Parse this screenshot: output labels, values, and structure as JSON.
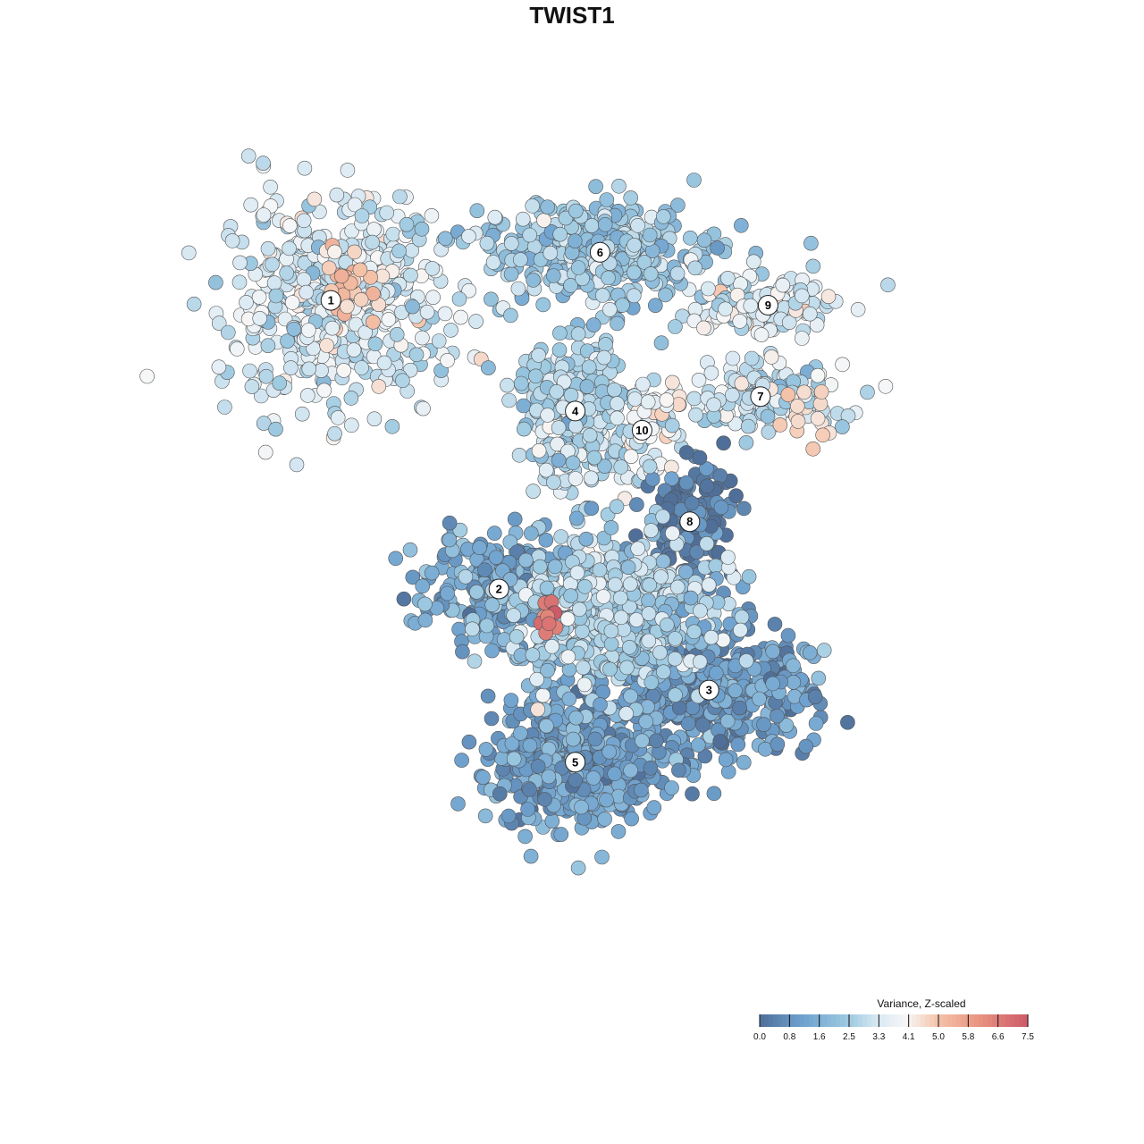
{
  "colors": {
    "low": "#4f6f99",
    "mid_low": "#6fa2cf",
    "light_blue": "#9ecae1",
    "pale": "#d9e9f3",
    "white": "#f7f7f7",
    "peach": "#f4c2a8",
    "salmon": "#e8907f",
    "high": "#cd5a68",
    "point_stroke": "#555555"
  },
  "chart_data": {
    "type": "scatter",
    "title": "TWIST1",
    "xlabel": "",
    "ylabel": "",
    "grid": false,
    "legend": {
      "position": "bottom-right",
      "title": "Variance, Z-scaled",
      "ticks": [
        "0.0",
        "0.8",
        "1.6",
        "2.5",
        "3.3",
        "4.1",
        "5.0",
        "5.8",
        "6.6",
        "7.5"
      ],
      "range": [
        0.0,
        7.5
      ]
    },
    "clusters": [
      {
        "label": "1",
        "x": -6.9,
        "y": 5.6,
        "spread_x": 1.45,
        "spread_y": 1.05,
        "n": 520,
        "mean_value": 3.3
      },
      {
        "label": "6",
        "x": 0.15,
        "y": 6.6,
        "spread_x": 1.55,
        "spread_y": 0.55,
        "n": 380,
        "mean_value": 2.4
      },
      {
        "label": "4",
        "x": -0.5,
        "y": 3.3,
        "spread_x": 0.75,
        "spread_y": 0.75,
        "n": 260,
        "mean_value": 2.8
      },
      {
        "label": "10",
        "x": 1.25,
        "y": 2.9,
        "spread_x": 0.4,
        "spread_y": 0.6,
        "n": 60,
        "mean_value": 3.6
      },
      {
        "label": "9",
        "x": 4.55,
        "y": 5.5,
        "spread_x": 0.95,
        "spread_y": 0.35,
        "n": 120,
        "mean_value": 3.4
      },
      {
        "label": "7",
        "x": 4.35,
        "y": 3.6,
        "spread_x": 1.1,
        "spread_y": 0.35,
        "n": 160,
        "mean_value": 3.1
      },
      {
        "label": "8",
        "x": 2.5,
        "y": 1.0,
        "spread_x": 0.6,
        "spread_y": 0.6,
        "n": 150,
        "mean_value": 0.4
      },
      {
        "label": "2",
        "x": -2.5,
        "y": -0.4,
        "spread_x": 1.1,
        "spread_y": 0.6,
        "n": 220,
        "mean_value": 1.4
      },
      {
        "label": "3",
        "x": 3.0,
        "y": -2.5,
        "spread_x": 1.3,
        "spread_y": 0.65,
        "n": 480,
        "mean_value": 1.1
      },
      {
        "label": "5",
        "x": -0.5,
        "y": -4.0,
        "spread_x": 1.1,
        "spread_y": 0.65,
        "n": 520,
        "mean_value": 1.2
      },
      {
        "label": "",
        "x": 0.45,
        "y": -0.9,
        "spread_x": 1.3,
        "spread_y": 0.85,
        "n": 560,
        "mean_value": 2.7
      }
    ],
    "hotspots": [
      {
        "x": -1.15,
        "y": -1.05,
        "spread": 0.14,
        "n": 12,
        "value": 6.8
      },
      {
        "x": -6.4,
        "y": 5.9,
        "spread": 0.45,
        "n": 28,
        "value": 5.0
      },
      {
        "x": 5.35,
        "y": 3.25,
        "spread": 0.35,
        "n": 16,
        "value": 4.4
      },
      {
        "x": 1.75,
        "y": 3.45,
        "spread": 0.25,
        "n": 10,
        "value": 4.2
      }
    ],
    "xlim": [
      -11,
      11
    ],
    "ylim": [
      -8.5,
      8.5
    ]
  }
}
